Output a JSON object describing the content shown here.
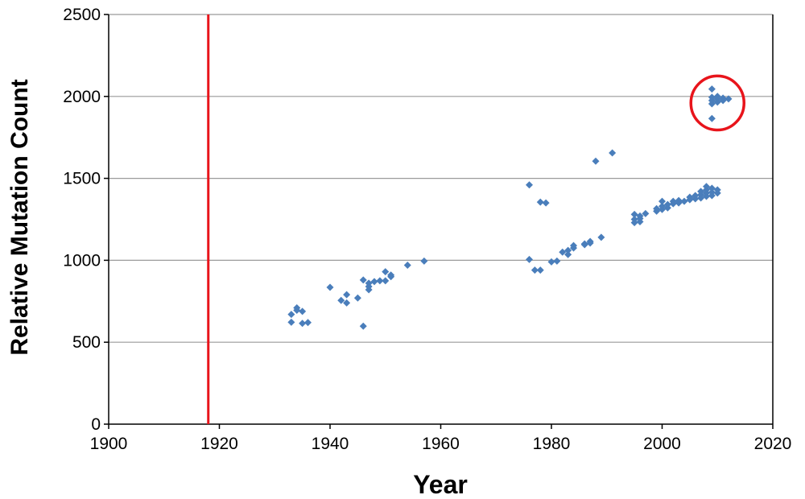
{
  "chart_data": {
    "type": "scatter",
    "title": "",
    "xlabel": "Year",
    "ylabel": "Relative Mutation Count",
    "xlim": [
      1900,
      2020
    ],
    "ylim": [
      0,
      2500
    ],
    "x_ticks": [
      1900,
      1920,
      1940,
      1960,
      1980,
      2000,
      2020
    ],
    "y_ticks": [
      0,
      500,
      1000,
      1500,
      2000,
      2500
    ],
    "grid": "horizontal",
    "legend": "none",
    "marker": "diamond",
    "colors": {
      "points": "#4a7ebb",
      "reference_line": "#e8141b",
      "highlight_circle": "#e8141b",
      "grid": "#9a9a9a"
    },
    "reference_line": {
      "x": 1918
    },
    "highlight_circle": {
      "cx": 2010,
      "cy": 1960,
      "rx": 4.8,
      "ry": 165
    },
    "points": [
      [
        1933,
        670
      ],
      [
        1933,
        622
      ],
      [
        1934,
        710
      ],
      [
        1934,
        695
      ],
      [
        1935,
        688
      ],
      [
        1935,
        615
      ],
      [
        1936,
        620
      ],
      [
        1940,
        835
      ],
      [
        1942,
        755
      ],
      [
        1943,
        740
      ],
      [
        1943,
        790
      ],
      [
        1945,
        770
      ],
      [
        1946,
        880
      ],
      [
        1946,
        598
      ],
      [
        1947,
        820
      ],
      [
        1947,
        840
      ],
      [
        1947,
        860
      ],
      [
        1948,
        870
      ],
      [
        1949,
        875
      ],
      [
        1950,
        930
      ],
      [
        1950,
        875
      ],
      [
        1951,
        900
      ],
      [
        1951,
        910
      ],
      [
        1954,
        970
      ],
      [
        1957,
        995
      ],
      [
        1976,
        1005
      ],
      [
        1976,
        1460
      ],
      [
        1977,
        940
      ],
      [
        1978,
        940
      ],
      [
        1978,
        1355
      ],
      [
        1979,
        1350
      ],
      [
        1980,
        990
      ],
      [
        1981,
        995
      ],
      [
        1982,
        1050
      ],
      [
        1983,
        1035
      ],
      [
        1983,
        1060
      ],
      [
        1984,
        1075
      ],
      [
        1984,
        1090
      ],
      [
        1986,
        1100
      ],
      [
        1986,
        1095
      ],
      [
        1987,
        1105
      ],
      [
        1987,
        1115
      ],
      [
        1988,
        1605
      ],
      [
        1989,
        1140
      ],
      [
        1991,
        1655
      ],
      [
        1995,
        1230
      ],
      [
        1995,
        1250
      ],
      [
        1995,
        1280
      ],
      [
        1996,
        1235
      ],
      [
        1996,
        1255
      ],
      [
        1996,
        1270
      ],
      [
        1997,
        1285
      ],
      [
        1999,
        1300
      ],
      [
        1999,
        1315
      ],
      [
        2000,
        1310
      ],
      [
        2000,
        1330
      ],
      [
        2000,
        1360
      ],
      [
        2001,
        1320
      ],
      [
        2001,
        1340
      ],
      [
        2002,
        1345
      ],
      [
        2002,
        1360
      ],
      [
        2003,
        1350
      ],
      [
        2003,
        1365
      ],
      [
        2004,
        1360
      ],
      [
        2005,
        1370
      ],
      [
        2005,
        1385
      ],
      [
        2006,
        1375
      ],
      [
        2006,
        1395
      ],
      [
        2007,
        1380
      ],
      [
        2007,
        1400
      ],
      [
        2007,
        1420
      ],
      [
        2008,
        1390
      ],
      [
        2008,
        1410
      ],
      [
        2008,
        1430
      ],
      [
        2008,
        1450
      ],
      [
        2009,
        1395
      ],
      [
        2009,
        1415
      ],
      [
        2009,
        1440
      ],
      [
        2010,
        1410
      ],
      [
        2010,
        1430
      ],
      [
        2009,
        2045
      ],
      [
        2009,
        1995
      ],
      [
        2009,
        1975
      ],
      [
        2009,
        1955
      ],
      [
        2009,
        1865
      ],
      [
        2010,
        2000
      ],
      [
        2010,
        1985
      ],
      [
        2010,
        1965
      ],
      [
        2011,
        1990
      ],
      [
        2011,
        1975
      ],
      [
        2012,
        1985
      ]
    ]
  }
}
